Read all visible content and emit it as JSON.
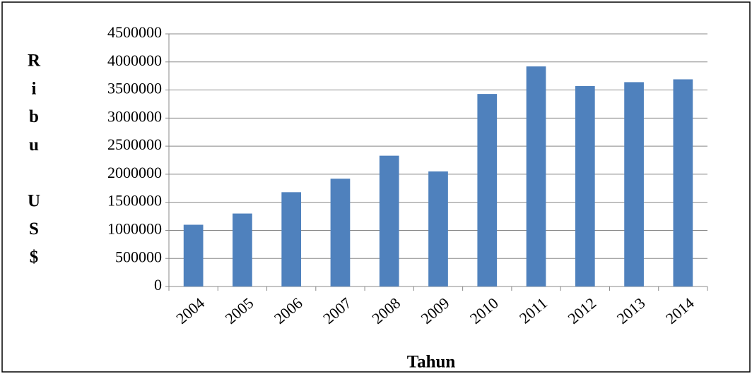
{
  "chart_data": {
    "type": "bar",
    "ylabel": "Ribu US$",
    "xlabel": "Tahun",
    "categories": [
      "2004",
      "2005",
      "2006",
      "2007",
      "2008",
      "2009",
      "2010",
      "2011",
      "2012",
      "2013",
      "2014"
    ],
    "values": [
      1100000,
      1300000,
      1680000,
      1920000,
      2330000,
      2050000,
      3430000,
      3920000,
      3570000,
      3640000,
      3690000
    ],
    "color": "#4f81bd",
    "ylim": [
      0,
      4500000
    ],
    "yticks": [
      0,
      500000,
      1000000,
      1500000,
      2000000,
      2500000,
      3000000,
      3500000,
      4000000,
      4500000
    ],
    "grid": true
  }
}
